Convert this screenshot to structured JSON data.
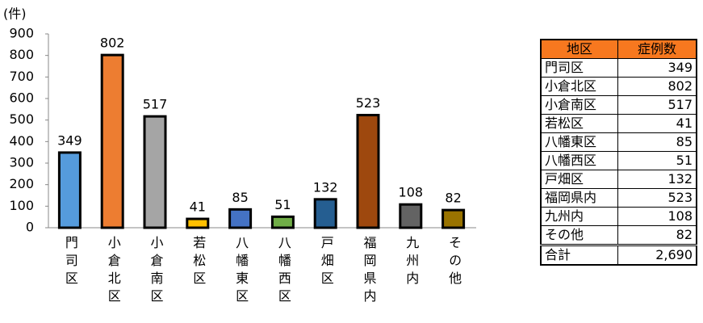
{
  "chart_data": {
    "type": "bar",
    "y_label": "(件)",
    "categories": [
      "門司区",
      "小倉北区",
      "小倉南区",
      "若松区",
      "八幡東区",
      "八幡西区",
      "戸畑区",
      "福岡県内",
      "九州内",
      "その他"
    ],
    "values": [
      349,
      802,
      517,
      41,
      85,
      51,
      132,
      523,
      108,
      82
    ],
    "colors": [
      "#559bdc",
      "#ed7d31",
      "#a5a5a5",
      "#ffc000",
      "#4472c4",
      "#70ad47",
      "#255e91",
      "#9e480e",
      "#636363",
      "#997300"
    ],
    "ylim": [
      0,
      900
    ],
    "yticks": [
      0,
      100,
      200,
      300,
      400,
      500,
      600,
      700,
      800,
      900
    ],
    "grid": false
  },
  "table": {
    "header": [
      "地区",
      "症例数"
    ],
    "rows": [
      [
        "門司区",
        "349"
      ],
      [
        "小倉北区",
        "802"
      ],
      [
        "小倉南区",
        "517"
      ],
      [
        "若松区",
        "41"
      ],
      [
        "八幡東区",
        "85"
      ],
      [
        "八幡西区",
        "51"
      ],
      [
        "戸畑区",
        "132"
      ],
      [
        "福岡県内",
        "523"
      ],
      [
        "九州内",
        "108"
      ],
      [
        "その他",
        "82"
      ]
    ],
    "total": [
      "合計",
      "2,690"
    ]
  }
}
